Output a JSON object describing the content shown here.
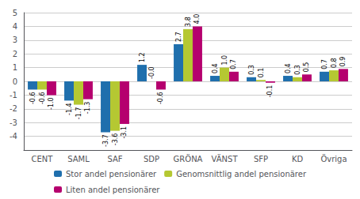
{
  "chart_data": {
    "type": "bar",
    "categories": [
      "CENT",
      "SAML",
      "SAF",
      "SDP",
      "GRÖNA",
      "VÄNST",
      "SFP",
      "KD",
      "Övriga"
    ],
    "series": [
      {
        "name": "Stor andel pensionärer",
        "color": "#1f6fad",
        "values": [
          -0.6,
          -1.4,
          -3.7,
          1.2,
          2.7,
          0.4,
          0.3,
          0.4,
          0.7
        ],
        "value_labels": [
          "-0.6",
          "-1.4",
          "-3.7",
          "1.2",
          "2.7",
          "0.4",
          "0.3",
          "0.4",
          "0.7"
        ]
      },
      {
        "name": "Genomsnittlig andel pensionärer",
        "color": "#b5c832",
        "values": [
          -0.6,
          -1.7,
          -3.6,
          -0.0,
          3.8,
          1.0,
          0.1,
          0.3,
          0.8
        ],
        "value_labels": [
          "-0.6",
          "-1.7",
          "-3.6",
          "-0.0",
          "3.8",
          "1.0",
          "0.1",
          "0.3",
          "0.8"
        ]
      },
      {
        "name": "Liten andel pensionärer",
        "color": "#b5006e",
        "values": [
          -1.0,
          -1.3,
          -3.1,
          -0.6,
          4.0,
          0.7,
          -0.1,
          0.5,
          0.9
        ],
        "value_labels": [
          "-1.0",
          "-1.3",
          "-3.1",
          "-0.6",
          "4.0",
          "0.7",
          "-0.1",
          "0.5",
          "0.9"
        ]
      }
    ],
    "ylim": [
      -5,
      5
    ],
    "yticks": [
      -4,
      -3,
      -2,
      -1,
      0,
      1,
      2,
      3,
      4,
      5
    ],
    "grid": true,
    "legend": "bottom",
    "data_labels": true
  }
}
